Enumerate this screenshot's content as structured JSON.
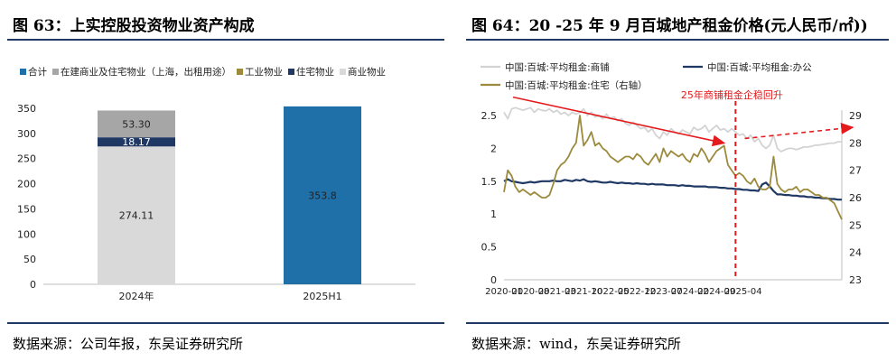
{
  "left": {
    "title": "图 63：上实控股投资物业资产构成",
    "source": "数据来源：公司年报，东吴证券研究所"
  },
  "right": {
    "title": "图 64：20 -25 年 9 月百城地产租金价格(元人民币/㎡))",
    "source": "数据来源：wind，东吴证券研究所"
  },
  "chart_data": [
    {
      "type": "bar",
      "stacked": true,
      "title": "上实控股投资物业资产构成",
      "categories": [
        "2024年",
        "2025H1"
      ],
      "ylim": [
        0,
        350
      ],
      "yticks": [
        0,
        50,
        100,
        150,
        200,
        250,
        300,
        350
      ],
      "legend_position": "top-left",
      "series": [
        {
          "name": "合计",
          "color": "#1f6fa8",
          "values": [
            null,
            353.8
          ],
          "labels": [
            "",
            "353.8"
          ]
        },
        {
          "name": "在建商业及住宅物业（上海，出租用途）",
          "color": "#a6a6a6",
          "values": [
            53.3,
            null
          ],
          "labels": [
            "53.30",
            ""
          ]
        },
        {
          "name": "工业物业",
          "color": "#9c8a3d",
          "values": [
            null,
            null
          ],
          "labels": [
            "",
            ""
          ]
        },
        {
          "name": "住宅物业",
          "color": "#1f3864",
          "values": [
            18.17,
            null
          ],
          "labels": [
            "18.17",
            ""
          ]
        },
        {
          "name": "商业物业",
          "color": "#d9d9d9",
          "values": [
            274.11,
            null
          ],
          "labels": [
            "274.11",
            ""
          ]
        }
      ]
    },
    {
      "type": "line",
      "title": "20 -25 年 9 月百城地产租金价格",
      "x_tick_labels": [
        "2020-01",
        "2020-08",
        "2021-03",
        "2021-10",
        "2022-05",
        "2022-12",
        "2023-07",
        "2024-02",
        "2024-09",
        "2025-04"
      ],
      "x_start": "2020-01",
      "x_end": "2025-09",
      "ylim_left": [
        0,
        2.5
      ],
      "yticks_left": [
        0,
        0.5,
        1,
        1.5,
        2,
        2.5
      ],
      "ylim_right": [
        23,
        29
      ],
      "yticks_right": [
        23,
        24,
        25,
        26,
        27,
        28,
        29
      ],
      "series": [
        {
          "name": "中国:百城:平均租金:商铺",
          "axis": "left",
          "color": "#d3d3d3",
          "values": [
            2.55,
            2.45,
            2.6,
            2.62,
            2.6,
            2.58,
            2.6,
            2.62,
            2.55,
            2.6,
            2.58,
            2.57,
            2.6,
            2.55,
            2.58,
            2.52,
            2.55,
            2.5,
            2.55,
            2.52,
            2.55,
            2.6,
            2.5,
            2.55,
            2.48,
            2.5,
            2.45,
            2.52,
            2.45,
            2.48,
            2.42,
            2.45,
            2.38,
            2.35,
            2.4,
            2.35,
            2.3,
            2.32,
            2.25,
            2.3,
            2.2,
            2.15,
            2.25,
            2.2,
            2.3,
            2.25,
            2.22,
            2.28,
            2.25,
            2.22,
            2.32,
            2.28,
            2.3,
            2.35,
            2.25,
            2.3,
            2.35,
            2.28,
            2.3,
            2.25,
            2.3,
            2.25,
            2.2,
            2.22,
            2.15,
            2.2,
            2.1,
            2.15,
            2.05,
            2.0,
            2.05,
            2.2,
            2.0,
            1.95,
            1.98,
            2.0,
            2.0,
            1.98,
            2.0,
            2.02,
            2.02,
            2.03,
            2.05,
            2.05,
            2.06,
            2.07,
            2.08,
            2.08,
            2.1,
            2.1
          ]
        },
        {
          "name": "中国:百城:平均租金:办公",
          "axis": "left",
          "color": "#1f3864",
          "values": [
            1.5,
            1.53,
            1.5,
            1.49,
            1.48,
            1.47,
            1.48,
            1.49,
            1.48,
            1.49,
            1.5,
            1.5,
            1.5,
            1.51,
            1.5,
            1.5,
            1.52,
            1.51,
            1.5,
            1.52,
            1.51,
            1.53,
            1.5,
            1.49,
            1.5,
            1.49,
            1.48,
            1.48,
            1.49,
            1.48,
            1.47,
            1.48,
            1.47,
            1.47,
            1.46,
            1.47,
            1.46,
            1.46,
            1.45,
            1.46,
            1.45,
            1.45,
            1.45,
            1.44,
            1.44,
            1.44,
            1.43,
            1.44,
            1.43,
            1.43,
            1.42,
            1.42,
            1.42,
            1.42,
            1.41,
            1.41,
            1.41,
            1.4,
            1.4,
            1.39,
            1.39,
            1.38,
            1.38,
            1.37,
            1.37,
            1.36,
            1.36,
            1.35,
            1.45,
            1.48,
            1.42,
            1.35,
            1.3,
            1.3,
            1.29,
            1.29,
            1.28,
            1.28,
            1.27,
            1.27,
            1.26,
            1.26,
            1.25,
            1.25,
            1.24,
            1.24,
            1.23,
            1.23,
            1.22,
            1.22
          ]
        },
        {
          "name": "中国:百城:平均租金:住宅（右轴）",
          "axis": "right",
          "color": "#9c8a3d",
          "values": [
            26.2,
            27.0,
            26.8,
            26.4,
            26.2,
            26.3,
            26.2,
            26.1,
            26.2,
            26.1,
            26.0,
            26.0,
            26.1,
            26.5,
            27.0,
            27.2,
            27.3,
            27.5,
            27.8,
            28.0,
            29.0,
            27.9,
            28.1,
            28.4,
            27.9,
            28.0,
            27.8,
            27.7,
            27.5,
            27.4,
            27.3,
            27.4,
            27.5,
            27.5,
            27.4,
            27.6,
            27.5,
            27.3,
            27.2,
            27.4,
            27.6,
            27.3,
            27.8,
            27.5,
            27.7,
            27.6,
            27.5,
            27.6,
            27.4,
            27.3,
            27.6,
            27.5,
            27.8,
            27.6,
            27.3,
            27.5,
            27.7,
            27.8,
            27.9,
            27.2,
            27.0,
            26.8,
            26.9,
            26.8,
            26.6,
            26.5,
            26.7,
            26.4,
            26.3,
            26.3,
            26.4,
            27.5,
            26.5,
            26.3,
            26.2,
            26.3,
            26.3,
            26.4,
            26.2,
            26.3,
            26.3,
            26.2,
            26.1,
            26.1,
            26.0,
            26.0,
            25.9,
            25.8,
            25.5,
            25.2
          ]
        }
      ],
      "annotations": [
        {
          "text": "25年商铺租金企稳回升",
          "color": "#e41a1c",
          "at_month": "2025-02"
        }
      ]
    }
  ]
}
